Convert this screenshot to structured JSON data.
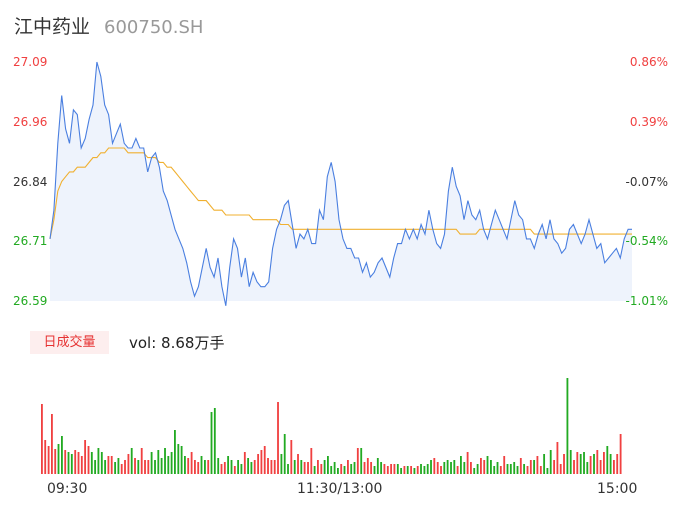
{
  "header": {
    "name": "江中药业",
    "code": "600750.SH"
  },
  "colors": {
    "up": "#f04040",
    "down": "#22aa22",
    "price_line": "#4a7fe0",
    "avg_line": "#f0b030",
    "neutral": "#333333"
  },
  "volume_panel": {
    "tag": "日成交量",
    "value_text": "vol: 8.68万手"
  },
  "chart_data": [
    {
      "type": "line",
      "title": "",
      "xlabel": "",
      "ylabel": "",
      "y_left_ticks": [
        "27.09",
        "26.96",
        "26.84",
        "26.71",
        "26.59"
      ],
      "y_right_ticks": [
        "0.86%",
        "0.39%",
        "-0.07%",
        "-0.54%",
        "-1.01%"
      ],
      "ylim": [
        26.59,
        27.09
      ],
      "x_ticks": [
        "09:30",
        "11:30/13:00",
        "15:00"
      ],
      "series": [
        {
          "values": [
            26.72,
            26.78,
            26.92,
            27.02,
            26.95,
            26.92,
            26.99,
            26.98,
            26.91,
            26.93,
            26.97,
            27.0,
            27.09,
            27.06,
            27.0,
            26.98,
            26.92,
            26.94,
            26.96,
            26.92,
            26.91,
            26.91,
            26.93,
            26.91,
            26.91,
            26.86,
            26.89,
            26.9,
            26.87,
            26.82,
            26.8,
            26.77,
            26.74,
            26.72,
            26.7,
            26.67,
            26.63,
            26.6,
            26.62,
            26.66,
            26.7,
            26.66,
            26.64,
            26.68,
            26.62,
            26.58,
            26.66,
            26.72,
            26.7,
            26.64,
            26.68,
            26.62,
            26.65,
            26.63,
            26.62,
            26.62,
            26.63,
            26.7,
            26.74,
            26.76,
            26.79,
            26.8,
            26.75,
            26.7,
            26.73,
            26.72,
            26.74,
            26.71,
            26.71,
            26.78,
            26.76,
            26.85,
            26.88,
            26.84,
            26.76,
            26.72,
            26.7,
            26.7,
            26.68,
            26.68,
            26.65,
            26.67,
            26.64,
            26.65,
            26.67,
            26.68,
            26.66,
            26.64,
            26.68,
            26.71,
            26.71,
            26.74,
            26.72,
            26.74,
            26.72,
            26.75,
            26.73,
            26.78,
            26.74,
            26.71,
            26.7,
            26.73,
            26.82,
            26.87,
            26.83,
            26.81,
            26.76,
            26.8,
            26.77,
            26.76,
            26.78,
            26.74,
            26.72,
            26.75,
            26.78,
            26.76,
            26.74,
            26.72,
            26.76,
            26.8,
            26.77,
            26.76,
            26.72,
            26.72,
            26.7,
            26.73,
            26.75,
            26.72,
            26.76,
            26.72,
            26.71,
            26.69,
            26.7,
            26.74,
            26.75,
            26.73,
            26.71,
            26.73,
            26.76,
            26.73,
            26.7,
            26.71,
            26.67,
            26.68,
            26.69,
            26.7,
            26.68,
            26.72,
            26.74,
            26.74
          ]
        },
        {
          "values": [
            26.72,
            26.76,
            26.82,
            26.84,
            26.85,
            26.86,
            26.86,
            26.87,
            26.87,
            26.87,
            26.88,
            26.89,
            26.89,
            26.9,
            26.9,
            26.91,
            26.91,
            26.91,
            26.91,
            26.91,
            26.9,
            26.9,
            26.9,
            26.9,
            26.9,
            26.89,
            26.89,
            26.89,
            26.88,
            26.88,
            26.87,
            26.87,
            26.86,
            26.85,
            26.84,
            26.83,
            26.82,
            26.81,
            26.8,
            26.8,
            26.8,
            26.79,
            26.78,
            26.78,
            26.78,
            26.77,
            26.77,
            26.77,
            26.77,
            26.77,
            26.77,
            26.77,
            26.76,
            26.76,
            26.76,
            26.76,
            26.76,
            26.76,
            26.76,
            26.75,
            26.75,
            26.75,
            26.74,
            26.74,
            26.74,
            26.74,
            26.74,
            26.74,
            26.74,
            26.74,
            26.74,
            26.74,
            26.74,
            26.74,
            26.74,
            26.74,
            26.74,
            26.74,
            26.74,
            26.74,
            26.74,
            26.74,
            26.74,
            26.74,
            26.74,
            26.74,
            26.74,
            26.74,
            26.74,
            26.74,
            26.74,
            26.74,
            26.74,
            26.74,
            26.74,
            26.74,
            26.74,
            26.74,
            26.74,
            26.74,
            26.74,
            26.74,
            26.74,
            26.74,
            26.74,
            26.73,
            26.73,
            26.73,
            26.73,
            26.73,
            26.74,
            26.74,
            26.74,
            26.74,
            26.74,
            26.74,
            26.74,
            26.74,
            26.74,
            26.74,
            26.74,
            26.74,
            26.74,
            26.74,
            26.73,
            26.73,
            26.73,
            26.73,
            26.73,
            26.73,
            26.73,
            26.73,
            26.73,
            26.73,
            26.73,
            26.73,
            26.73,
            26.73,
            26.73,
            26.73,
            26.73,
            26.73,
            26.73,
            26.73,
            26.73,
            26.73,
            26.73,
            26.73,
            26.73,
            26.73
          ]
        }
      ]
    },
    {
      "type": "bar",
      "title": "",
      "series": [
        {
          "values": [
            70,
            34,
            28,
            60,
            25,
            30,
            38,
            24,
            22,
            20,
            24,
            22,
            18,
            34,
            28,
            22,
            14,
            26,
            22,
            14,
            18,
            18,
            12,
            16,
            10,
            14,
            20,
            26,
            16,
            14,
            26,
            14,
            14,
            22,
            14,
            24,
            16,
            26,
            18,
            22,
            44,
            30,
            28,
            18,
            16,
            22,
            14,
            12,
            18,
            14,
            14,
            62,
            66,
            16,
            10,
            12,
            18,
            14,
            8,
            14,
            10,
            22,
            16,
            12,
            14,
            20,
            24,
            28,
            16,
            14,
            14,
            72,
            20,
            40,
            10,
            34,
            14,
            20,
            14,
            12,
            12,
            26,
            8,
            14,
            10,
            14,
            18,
            8,
            12,
            6,
            10,
            8,
            14,
            10,
            12,
            26,
            26,
            12,
            16,
            12,
            8,
            16,
            12,
            10,
            8,
            10,
            10,
            10,
            6,
            8,
            8,
            8,
            6,
            8,
            10,
            8,
            10,
            14,
            16,
            12,
            8,
            12,
            14,
            12,
            14,
            8,
            18,
            12,
            22,
            12,
            6,
            10,
            16,
            14,
            18,
            14,
            8,
            12,
            8,
            18,
            10,
            10,
            12,
            8,
            16,
            10,
            8,
            14,
            14,
            18,
            8,
            20,
            6,
            24,
            14,
            32,
            10,
            20,
            96,
            24,
            14,
            22,
            20,
            22,
            12,
            18,
            20,
            24,
            14,
            22,
            28,
            20,
            14,
            20,
            40
          ]
        }
      ]
    }
  ]
}
